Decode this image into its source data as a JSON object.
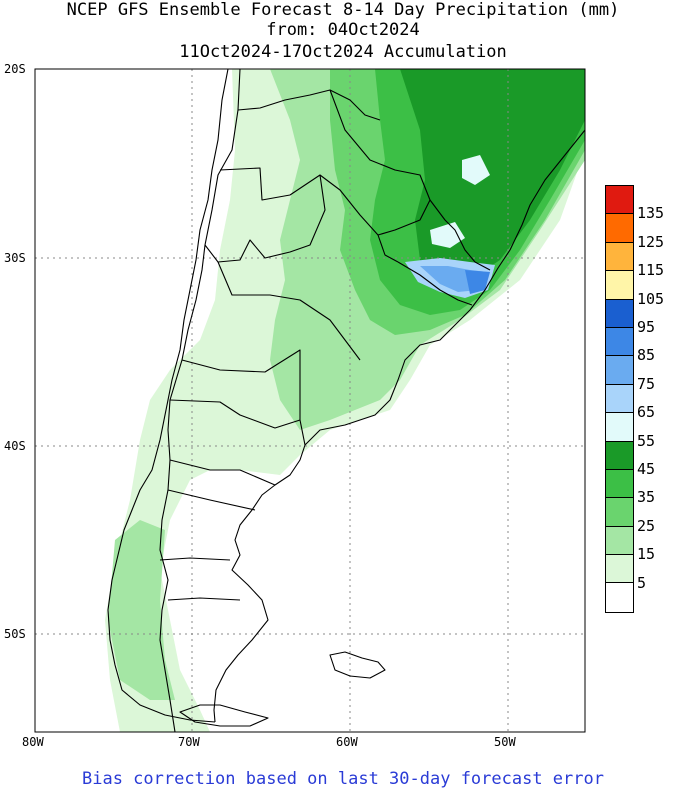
{
  "title": {
    "line1": "NCEP GFS Ensemble Forecast 8-14 Day Precipitation (mm)",
    "line2": "from: 04Oct2024",
    "line3": "11Oct2024-17Oct2024 Accumulation"
  },
  "footer": "Bias correction based on last 30-day forecast error",
  "lat_ticks": [
    "20S",
    "30S",
    "40S",
    "50S"
  ],
  "lon_ticks": [
    "80W",
    "70W",
    "60W",
    "50W"
  ],
  "legend": {
    "labels": [
      "135",
      "125",
      "115",
      "105",
      "95",
      "85",
      "75",
      "65",
      "55",
      "45",
      "35",
      "25",
      "15",
      "5"
    ],
    "colors": [
      "#e01a10",
      "#ff6a00",
      "#ffb43c",
      "#fff5a8",
      "#1a5fd0",
      "#3d87e6",
      "#6aabf0",
      "#a9d4fa",
      "#e2fafa",
      "#1a9a28",
      "#3cbf46",
      "#6ad46e",
      "#a4e6a4",
      "#dcf7d8",
      "#ffffff"
    ]
  },
  "map": {
    "extent": {
      "lon_min": -80,
      "lon_max": -45,
      "lat_min": -55,
      "lat_max": -20
    },
    "background": "#ffffff",
    "grid": "dotted",
    "region": "Southern South America"
  }
}
